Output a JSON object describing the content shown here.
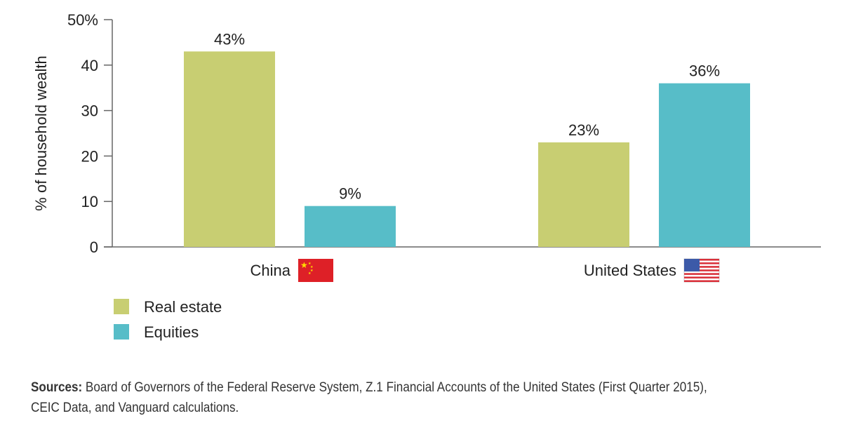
{
  "chart_data": {
    "type": "bar",
    "categories": [
      "China",
      "United States"
    ],
    "series": [
      {
        "name": "Real estate",
        "values": [
          43,
          23
        ],
        "color": "#c8ce72"
      },
      {
        "name": "Equities",
        "values": [
          9,
          36
        ],
        "color": "#57bdc8"
      }
    ],
    "value_labels": [
      [
        "43%",
        "23%"
      ],
      [
        "9%",
        "36%"
      ]
    ],
    "ylabel": "% of household wealth",
    "ylim": [
      0,
      50
    ],
    "yticks": [
      0,
      10,
      20,
      30,
      40,
      50
    ],
    "ytick_labels": [
      "0",
      "10",
      "20",
      "30",
      "40",
      "50%"
    ],
    "legend": "bottom-left",
    "grid": false
  },
  "sources_label": "Sources:",
  "sources_text": " Board of Governors of the Federal Reserve System, Z.1 Financial Accounts of the United States (First Quarter 2015), CEIC Data, and Vanguard calculations."
}
